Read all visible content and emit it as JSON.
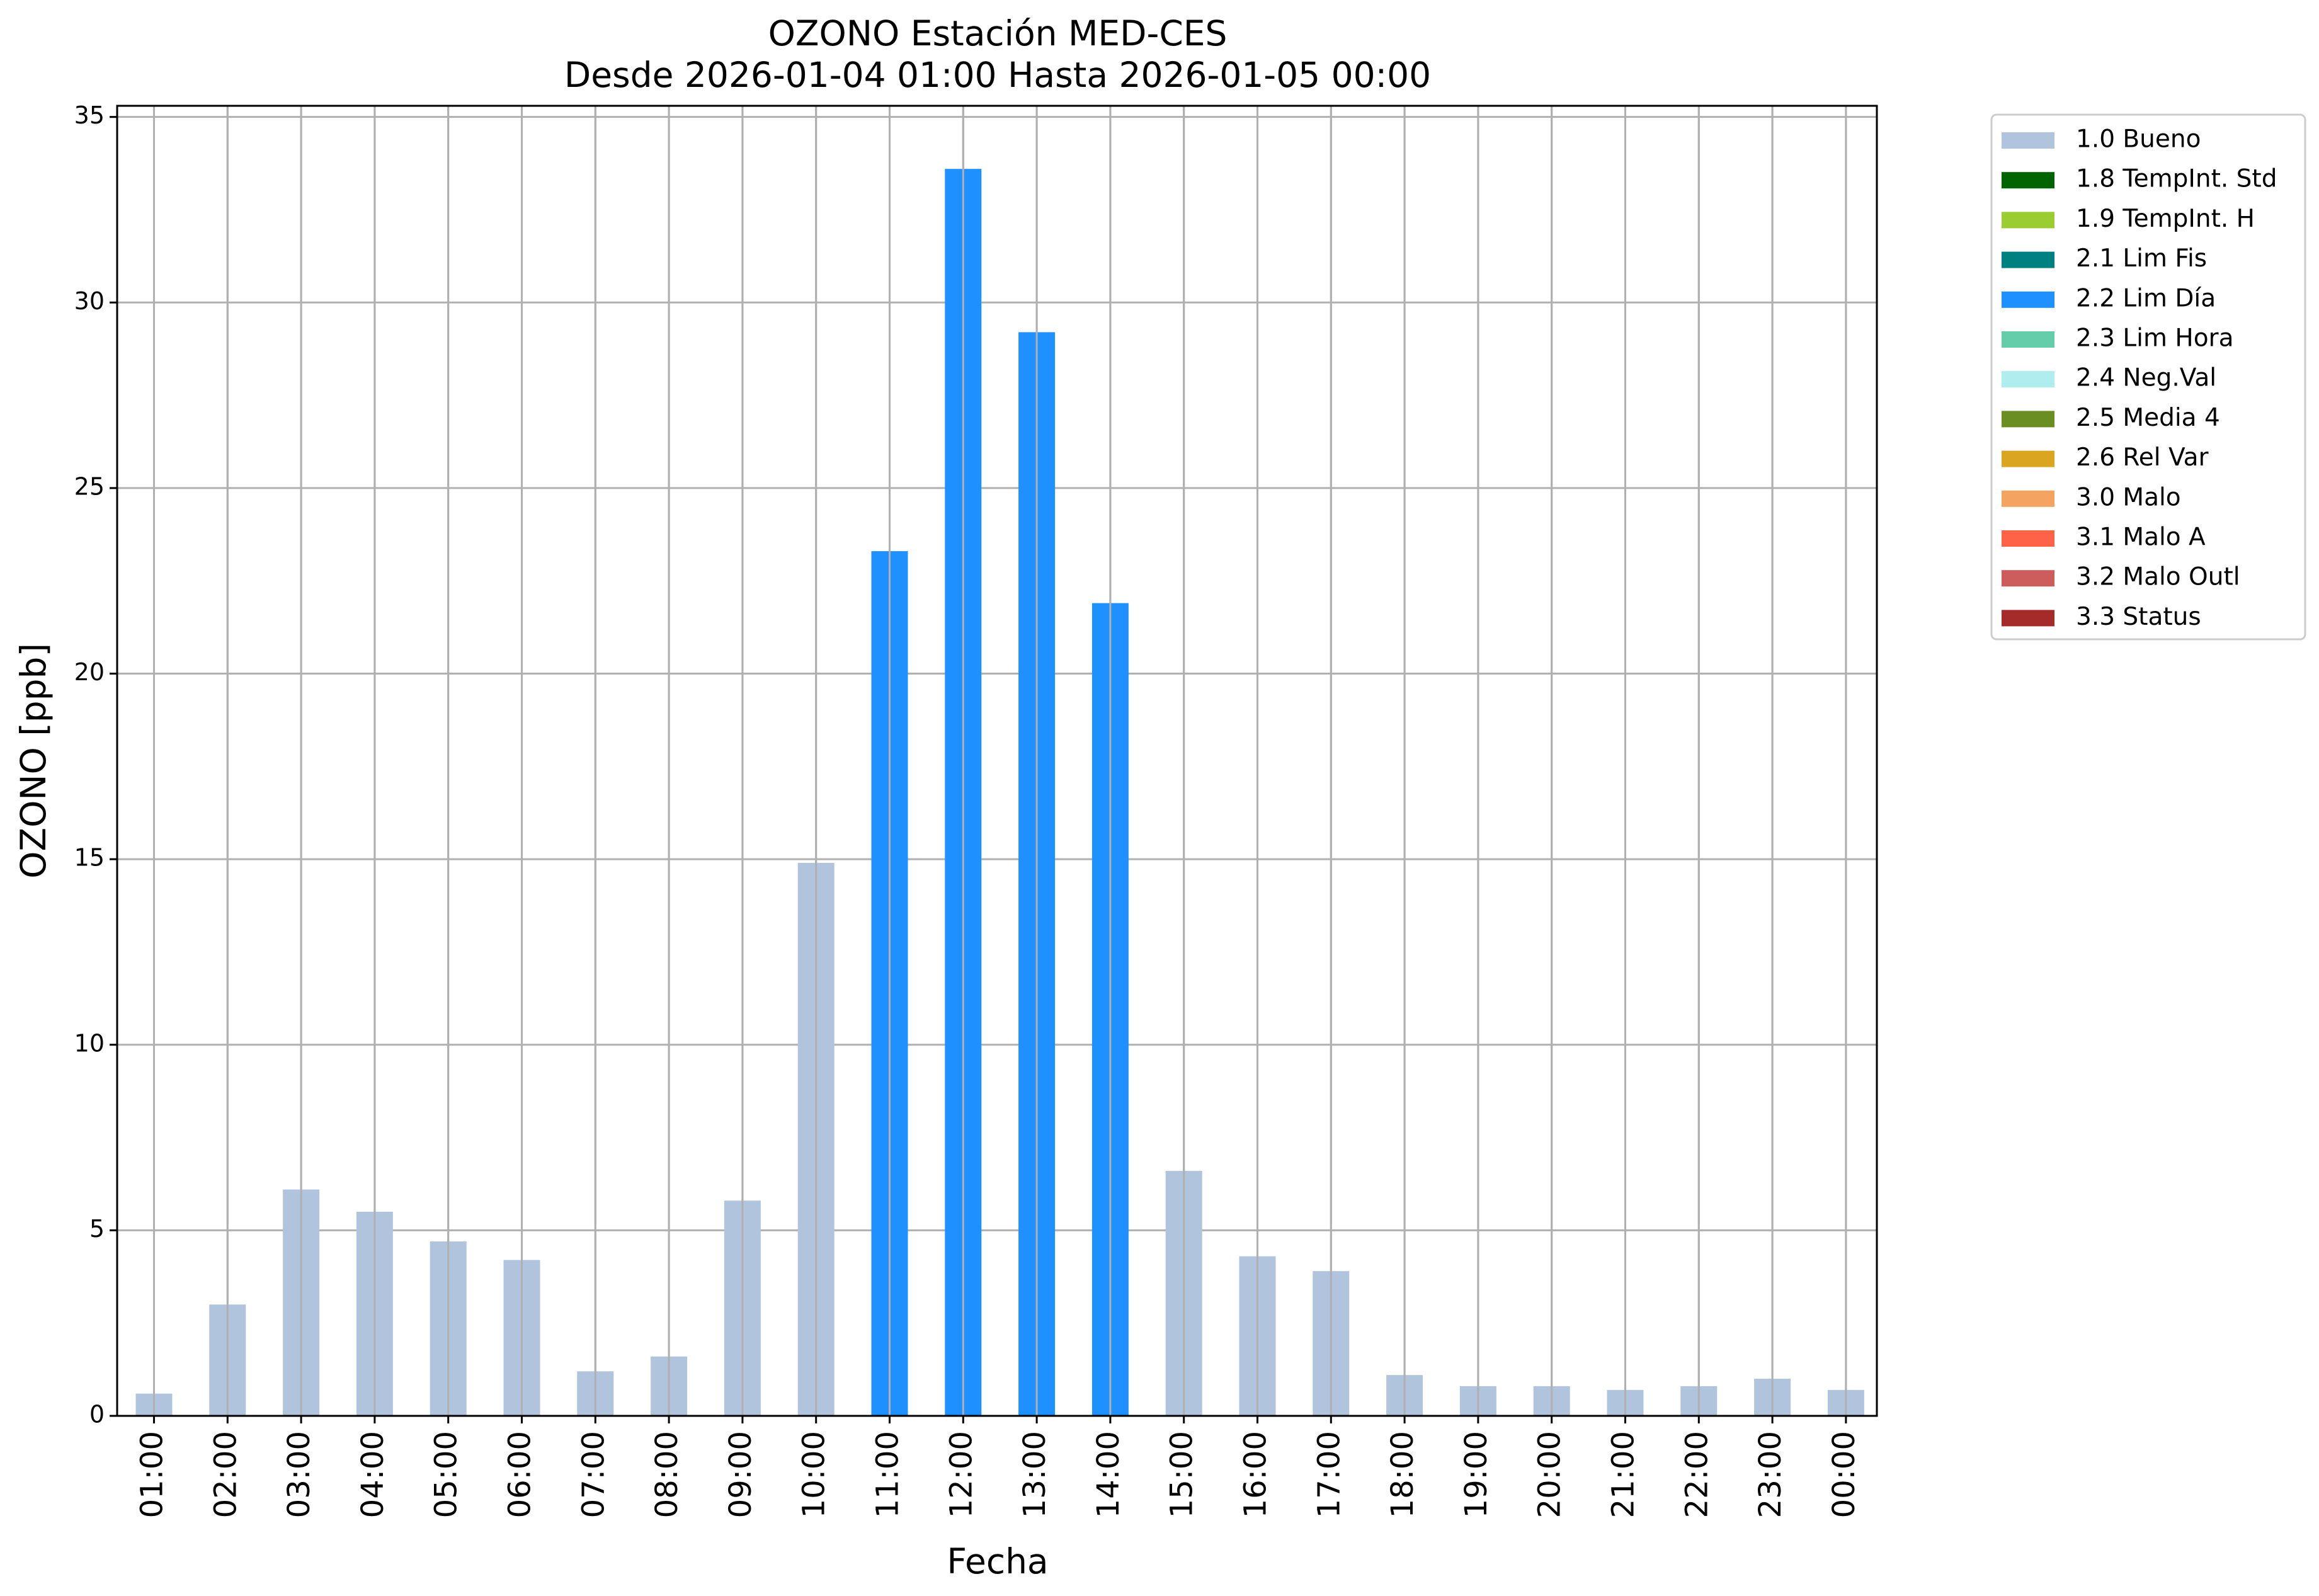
{
  "chart_data": {
    "type": "bar",
    "title": "OZONO Estación MED-CES",
    "subtitle": "Desde 2026-01-04 01:00 Hasta 2026-01-05 00:00",
    "xlabel": "Fecha",
    "ylabel": "OZONO [ppb]",
    "ylim": [
      0,
      35.3
    ],
    "yticks": [
      0,
      5,
      10,
      15,
      20,
      25,
      30,
      35
    ],
    "grid": true,
    "legend_position": "outside-top-right",
    "categories": [
      "01:00",
      "02:00",
      "03:00",
      "04:00",
      "05:00",
      "06:00",
      "07:00",
      "08:00",
      "09:00",
      "10:00",
      "11:00",
      "12:00",
      "13:00",
      "14:00",
      "15:00",
      "16:00",
      "17:00",
      "18:00",
      "19:00",
      "20:00",
      "21:00",
      "22:00",
      "23:00",
      "00:00"
    ],
    "values": [
      0.6,
      3.0,
      6.1,
      5.5,
      4.7,
      4.2,
      1.2,
      1.6,
      5.8,
      14.9,
      23.3,
      33.6,
      29.2,
      21.9,
      6.6,
      4.3,
      3.9,
      1.1,
      0.8,
      0.8,
      0.7,
      0.8,
      1.0,
      0.7
    ],
    "flags": [
      "1.0 Bueno",
      "1.0 Bueno",
      "1.0 Bueno",
      "1.0 Bueno",
      "1.0 Bueno",
      "1.0 Bueno",
      "1.0 Bueno",
      "1.0 Bueno",
      "1.0 Bueno",
      "1.0 Bueno",
      "2.2 Lim Día",
      "2.2 Lim Día",
      "2.2 Lim Día",
      "2.2 Lim Día",
      "1.0 Bueno",
      "1.0 Bueno",
      "1.0 Bueno",
      "1.0 Bueno",
      "1.0 Bueno",
      "1.0 Bueno",
      "1.0 Bueno",
      "1.0 Bueno",
      "1.0 Bueno",
      "1.0 Bueno"
    ],
    "legend": [
      {
        "label": "1.0 Bueno",
        "color": "#b0c4de"
      },
      {
        "label": "1.8 TempInt. Std",
        "color": "#006400"
      },
      {
        "label": "1.9 TempInt. H",
        "color": "#9acd32"
      },
      {
        "label": "2.1 Lim Fis",
        "color": "#008080"
      },
      {
        "label": "2.2 Lim Día",
        "color": "#1e90ff"
      },
      {
        "label": "2.3 Lim Hora",
        "color": "#66cdaa"
      },
      {
        "label": "2.4 Neg.Val",
        "color": "#afeeee"
      },
      {
        "label": "2.5 Media 4",
        "color": "#6b8e23"
      },
      {
        "label": "2.6 Rel Var",
        "color": "#daa520"
      },
      {
        "label": "3.0 Malo",
        "color": "#f4a460"
      },
      {
        "label": "3.1 Malo A",
        "color": "#ff6347"
      },
      {
        "label": "3.2 Malo Outl",
        "color": "#cd5c5c"
      },
      {
        "label": "3.3 Status",
        "color": "#a52a2a"
      }
    ]
  }
}
